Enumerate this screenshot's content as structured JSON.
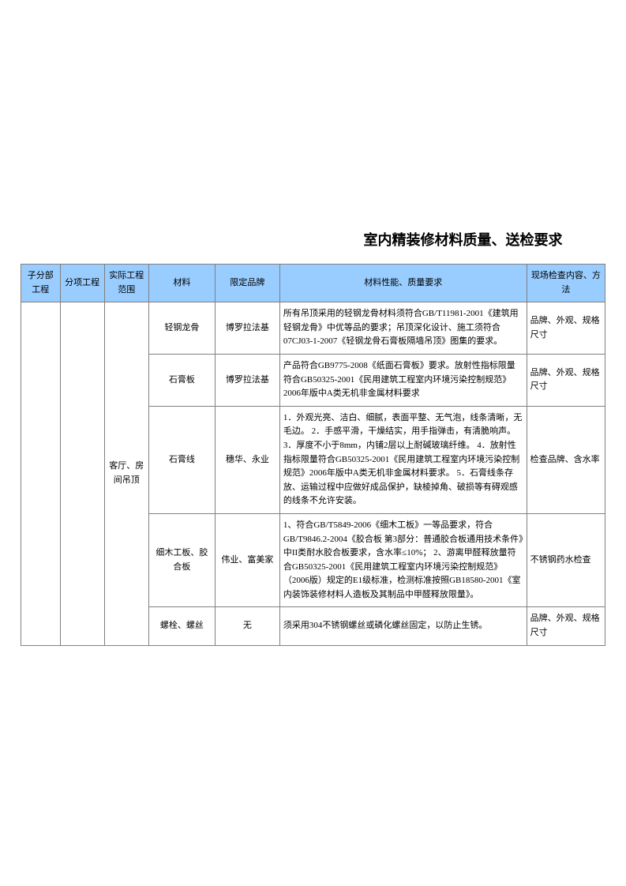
{
  "page": {
    "title": "室内精装修材料质量、送检要求"
  },
  "table": {
    "headers": {
      "col0": "子分部工程",
      "col1": "分项工程",
      "col2": "实际工程范围",
      "col3": "材料",
      "col4": "限定品牌",
      "col5": "材料性能、质量要求",
      "col6": "现场检查内容、方法"
    },
    "scope_cell": "客厅、房间吊顶",
    "rows": [
      {
        "material": "轻钢龙骨",
        "brand": "博罗拉法基",
        "requirement": "所有吊顶采用的轻钢龙骨材料须符合GB/T11981-2001《建筑用轻钢龙骨》中优等品的要求；吊顶深化设计、施工须符合07CJ03-1-2007《轻钢龙骨石膏板隔墙吊顶》图集的要求。",
        "inspection": "品牌、外观、规格尺寸"
      },
      {
        "material": "石膏板",
        "brand": "博罗拉法基",
        "requirement": "产品符合GB9775-2008《纸面石膏板》要求。放射性指标限量符合GB50325-2001《民用建筑工程室内环境污染控制规范》2006年版中A类无机非金属材料要求",
        "inspection": "品牌、外观、规格尺寸"
      },
      {
        "material": "石膏线",
        "brand": "穗华、永业",
        "requirement": "1．外观光亮、洁白、细腻，表面平整、无气泡，线条清晰，无毛边。\n2．手感平滑，干燥结实，用手指弹击，有清脆响声。\n3．厚度不小于8mm，内铺2层以上耐碱玻璃纤维。\n4．放射性指标限量符合GB50325-2001《民用建筑工程室内环境污染控制规范》2006年版中A类无机非金属材料要求。\n5．石膏线条存放、运输过程中应做好成品保护，缺棱掉角、破损等有碍观感的线条不允许安装。",
        "inspection": "检查品牌、含水率"
      },
      {
        "material": "细木工板、胶合板",
        "brand": "伟业、富美家",
        "requirement": "1、符合GB/T5849-2006《细木工板》一等品要求，符合GB/T9846.2-2004《胶合板 第3部分：普通胶合板通用技术条件》中II类耐水胶合板要求，含水率≤10%；\n2、游离甲醛释放量符合GB50325-2001《民用建筑工程室内环境污染控制规范》（2006版）规定的E1级标准，检测标准按照GB18580-2001《室内装饰装修材料人造板及其制品中甲醛释放限量》。",
        "inspection": "不锈钢药水检查"
      },
      {
        "material": "螺栓、螺丝",
        "brand": "无",
        "requirement": "须采用304不锈钢螺丝或磷化螺丝固定，以防止生锈。",
        "inspection": "品牌、外观、规格尺寸"
      }
    ]
  }
}
